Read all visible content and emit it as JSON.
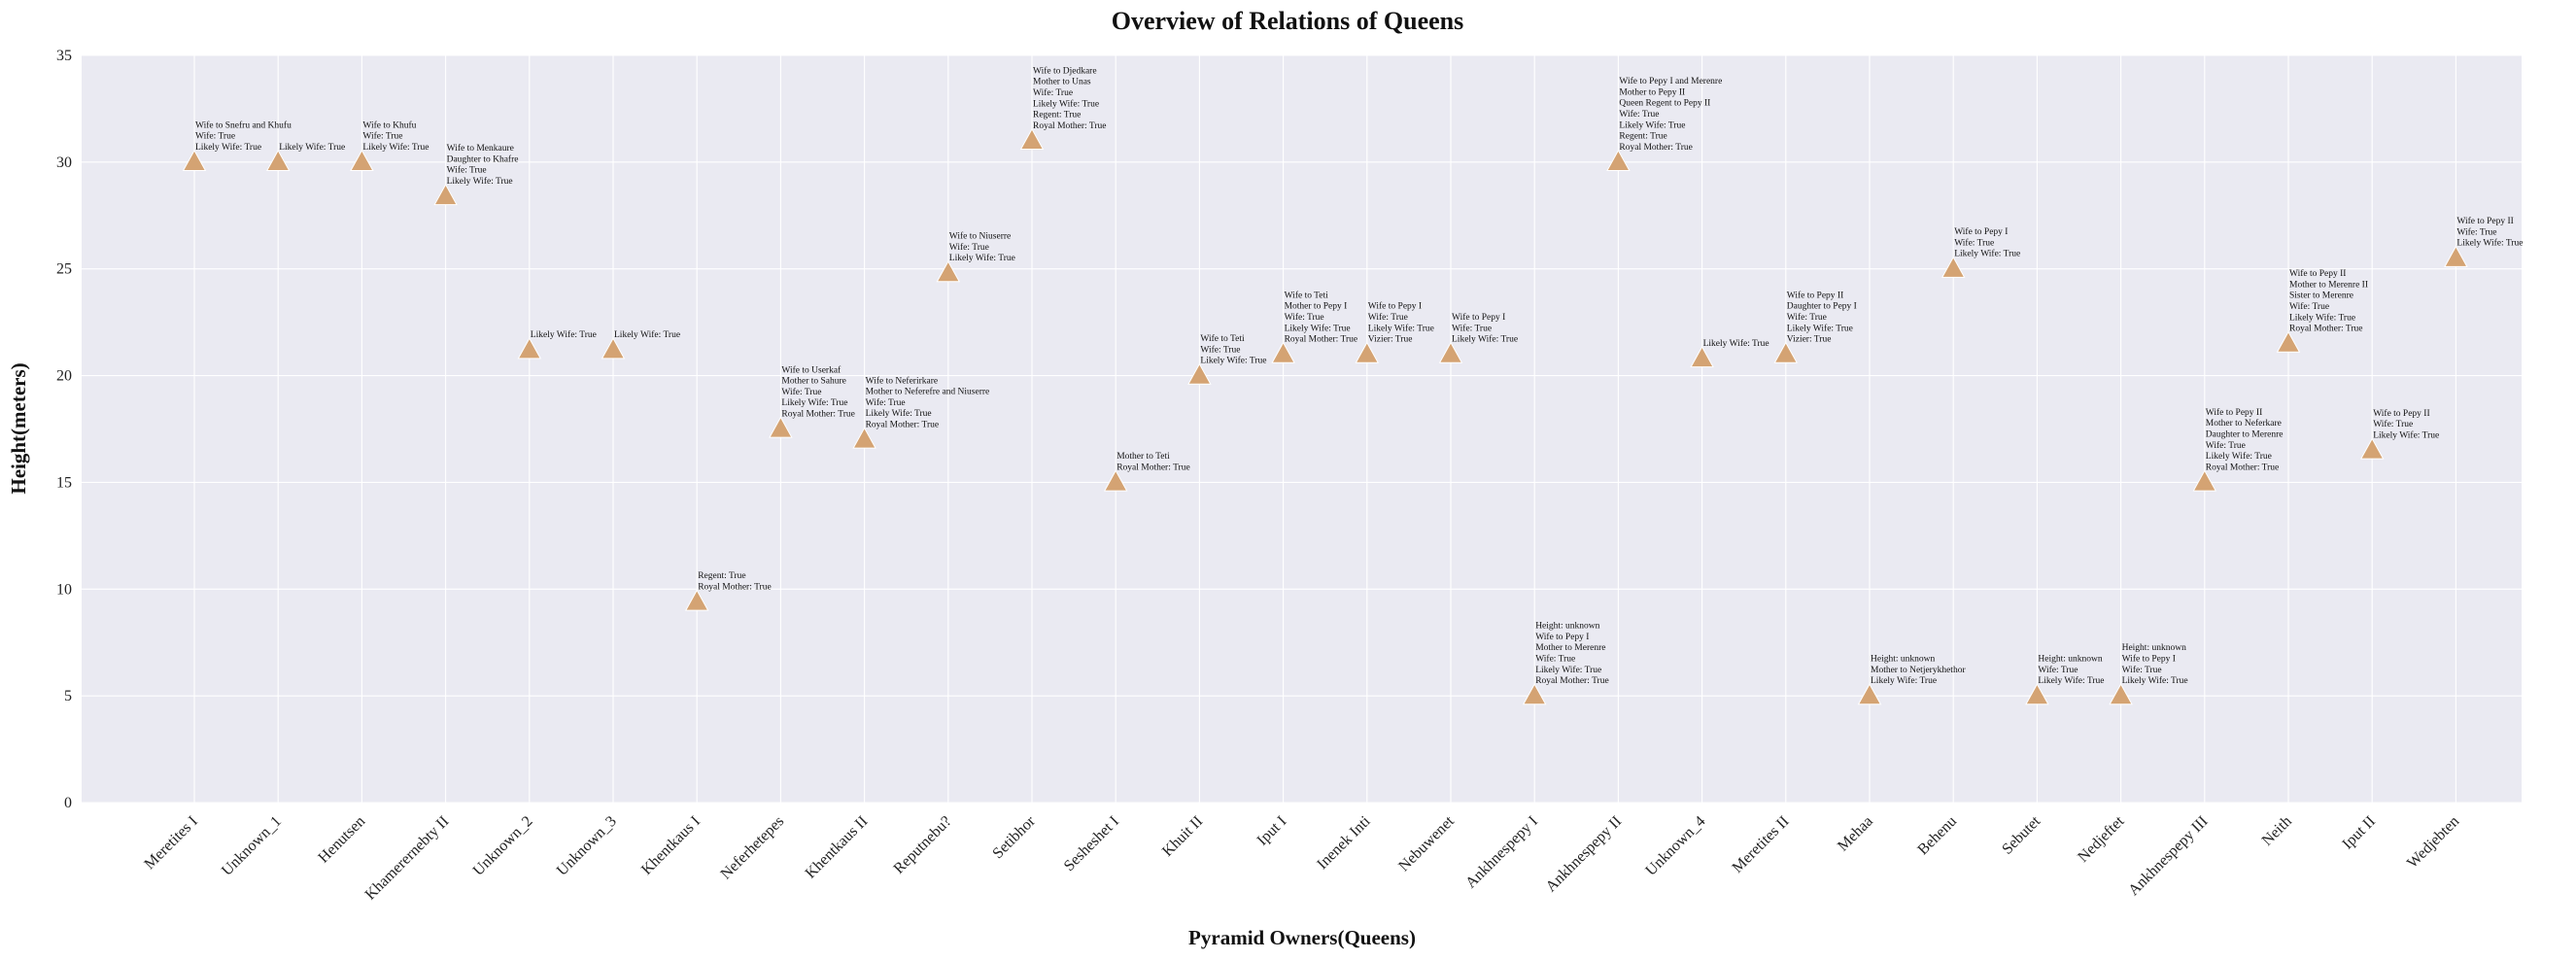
{
  "chart_data": {
    "type": "scatter",
    "title": "Overview of Relations of Queens",
    "xlabel": "Pyramid Owners(Queens)",
    "ylabel": "Height(meters)",
    "ylim": [
      0,
      35
    ],
    "yticks": [
      0,
      5,
      10,
      15,
      20,
      25,
      30,
      35
    ],
    "grid": true,
    "marker": "triangle",
    "marker_color": "#d4a373",
    "background_color": "#eaeaf2",
    "categories": [
      "Meretites I",
      "Unknown_1",
      "Henutsen",
      "Khamerernebty II",
      "Unknown_2",
      "Unknown_3",
      "Khentkaus I",
      "Neferhetepes",
      "Khentkaus II",
      "Reputnebu?",
      "Setibhor",
      "Sesheshet I",
      "Khuit II",
      "Iput I",
      "Inenek Inti",
      "Nebuwenet",
      "Ankhnespepy I",
      "Ankhnespepy II",
      "Unknown_4",
      "Meretites II",
      "Mehaa",
      "Behenu",
      "Sebutet",
      "Nedjeftet",
      "Ankhnespepy III",
      "Neith",
      "Iput II",
      "Wedjebten"
    ],
    "values": [
      30,
      30,
      30,
      28.4,
      21.2,
      21.2,
      9.4,
      17.5,
      17,
      24.8,
      31,
      15,
      20,
      21,
      21,
      21,
      5,
      30,
      20.8,
      21,
      5,
      25,
      5,
      5,
      15,
      21.5,
      16.5,
      25.5
    ],
    "annotations": [
      [
        "Wife to Snefru and Khufu",
        "Wife: True",
        "Likely Wife: True"
      ],
      [
        "Likely Wife: True"
      ],
      [
        "Wife to Khufu",
        "Wife: True",
        "Likely Wife: True"
      ],
      [
        "Wife to Menkaure",
        "Daughter to  Khafre",
        "Wife: True",
        "Likely Wife: True"
      ],
      [
        "Likely Wife: True"
      ],
      [
        "Likely Wife: True"
      ],
      [
        "Regent: True",
        "Royal Mother: True"
      ],
      [
        "Wife to Userkaf",
        "Mother to  Sahure",
        "Wife: True",
        "Likely Wife: True",
        "Royal Mother: True"
      ],
      [
        "Wife to Neferirkare",
        "Mother to  Neferefre and Niuserre",
        "Wife: True",
        "Likely Wife: True",
        "Royal Mother: True"
      ],
      [
        "Wife to Niuserre",
        "Wife: True",
        "Likely Wife: True"
      ],
      [
        "Wife to Djedkare",
        "Mother to  Unas",
        "Wife: True",
        "Likely Wife: True",
        "Regent: True",
        "Royal Mother: True"
      ],
      [
        "Mother to  Teti",
        "Royal Mother: True"
      ],
      [
        "Wife to Teti",
        "Wife: True",
        "Likely Wife: True"
      ],
      [
        "Wife to Teti",
        "Mother to  Pepy I",
        "Wife: True",
        "Likely Wife: True",
        "Royal Mother: True"
      ],
      [
        "Wife to Pepy I",
        "Wife: True",
        "Likely Wife: True",
        "Vizier: True"
      ],
      [
        "Wife to Pepy I",
        "Wife: True",
        "Likely Wife: True"
      ],
      [
        "Height: unknown",
        "Wife to Pepy I",
        "Mother to  Merenre",
        "Wife: True",
        "Likely Wife: True",
        "Royal Mother: True"
      ],
      [
        "Wife to Pepy I and Merenre",
        "Mother to  Pepy II",
        "Queen Regent to  Pepy II",
        "Wife: True",
        "Likely Wife: True",
        "Regent: True",
        "Royal Mother: True"
      ],
      [
        "Likely Wife: True"
      ],
      [
        "Wife to Pepy II",
        "Daughter to  Pepy I",
        "Wife: True",
        "Likely Wife: True",
        "Vizier: True"
      ],
      [
        "Height: unknown",
        "Mother to  Netjerykhethor",
        "Likely Wife: True"
      ],
      [
        "Wife to Pepy I",
        "Wife: True",
        "Likely Wife: True"
      ],
      [
        "Height: unknown",
        "Wife: True",
        "Likely Wife: True"
      ],
      [
        "Height: unknown",
        "Wife to Pepy I",
        "Wife: True",
        "Likely Wife: True"
      ],
      [
        "Wife to Pepy II",
        "Mother to  Neferkare",
        "Daughter to  Merenre",
        "Wife: True",
        "Likely Wife: True",
        "Royal Mother: True"
      ],
      [
        "Wife to Pepy II",
        "Mother to  Merenre II",
        "Sister to  Merenre",
        "Wife: True",
        "Likely Wife: True",
        "Royal Mother: True"
      ],
      [
        "Wife to Pepy II",
        "Wife: True",
        "Likely Wife: True"
      ],
      [
        "Wife to Pepy II",
        "Wife: True",
        "Likely Wife: True"
      ]
    ]
  }
}
